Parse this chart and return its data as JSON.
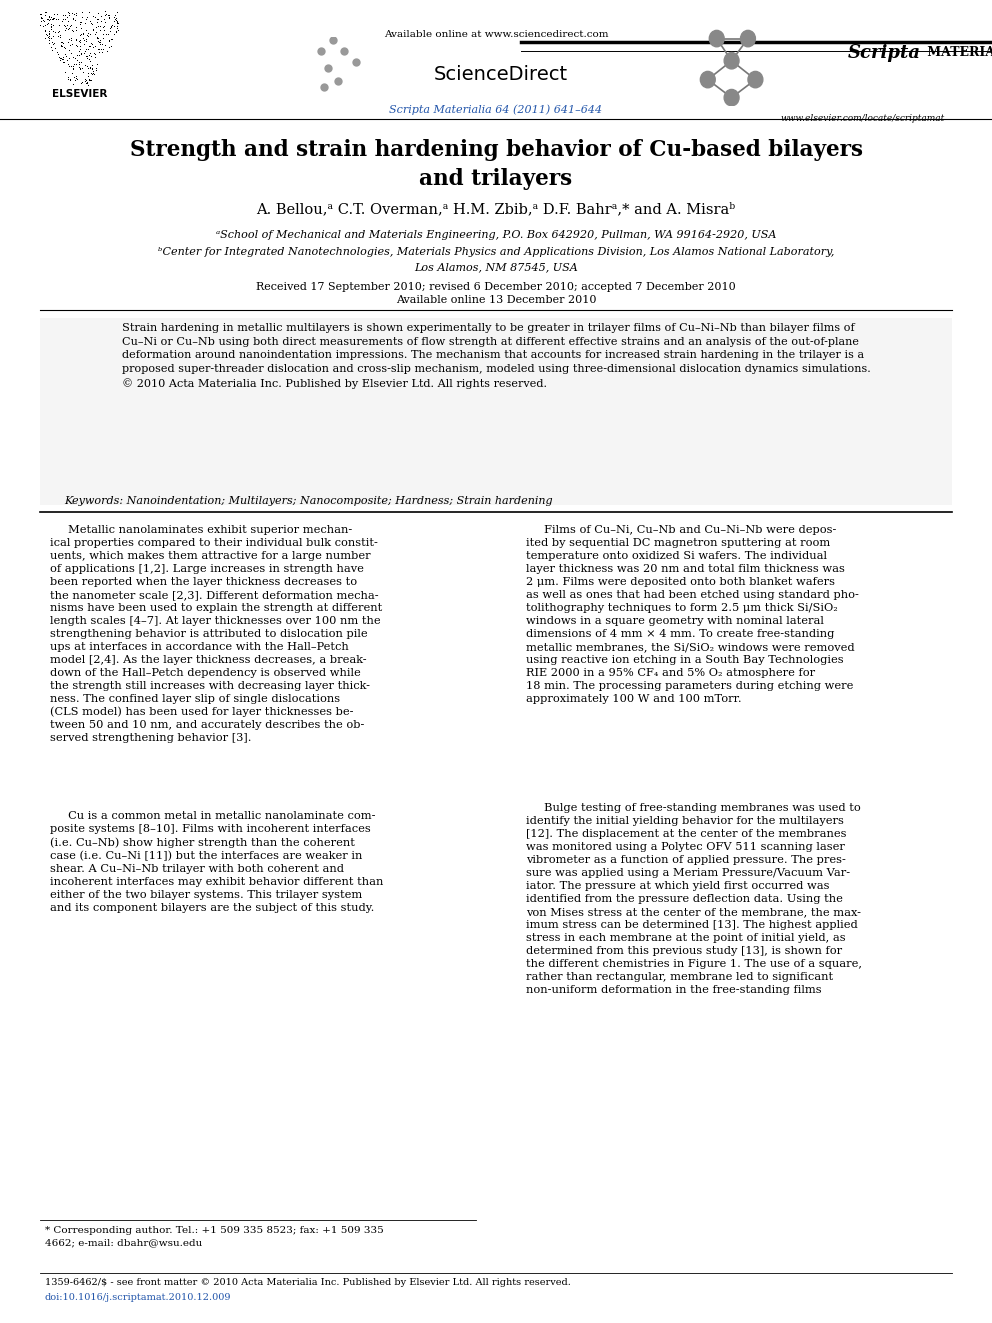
{
  "page_width": 9.92,
  "page_height": 13.23,
  "bg_color": "#ffffff",
  "available_online": "Available online at www.sciencedirect.com",
  "journal_ref": "Scripta Materialia 64 (2011) 641–644",
  "website": "www.elsevier.com/locate/scriptamat",
  "title": "Strength and strain hardening behavior of Cu-based bilayers\nand trilayers",
  "authors": "A. Bellou,ᵃ C.T. Overman,ᵃ H.M. Zbib,ᵃ D.F. Bahrᵃ,* and A. Misraᵇ",
  "affil_a": "ᵃSchool of Mechanical and Materials Engineering, P.O. Box 642920, Pullman, WA 99164-2920, USA",
  "affil_b": "ᵇCenter for Integrated Nanotechnologies, Materials Physics and Applications Division, Los Alamos National Laboratory,",
  "affil_b2": "Los Alamos, NM 87545, USA",
  "dates1": "Received 17 September 2010; revised 6 December 2010; accepted 7 December 2010",
  "dates2": "Available online 13 December 2010",
  "abstract_text": "Strain hardening in metallic multilayers is shown experimentally to be greater in trilayer films of Cu–Ni–Nb than bilayer films of\nCu–Ni or Cu–Nb using both direct measurements of flow strength at different effective strains and an analysis of the out-of-plane\ndeformation around nanoindentation impressions. The mechanism that accounts for increased strain hardening in the trilayer is a\nproposed super-threader dislocation and cross-slip mechanism, modeled using three-dimensional dislocation dynamics simulations.\n© 2010 Acta Materialia Inc. Published by Elsevier Ltd. All rights reserved.",
  "keywords": "Keywords: Nanoindentation; Multilayers; Nanocomposite; Hardness; Strain hardening",
  "col1_para1": "     Metallic nanolaminates exhibit superior mechan-\nical properties compared to their individual bulk constit-\nuents, which makes them attractive for a large number\nof applications [1,2]. Large increases in strength have\nbeen reported when the layer thickness decreases to\nthe nanometer scale [2,3]. Different deformation mecha-\nnisms have been used to explain the strength at different\nlength scales [4–7]. At layer thicknesses over 100 nm the\nstrengthening behavior is attributed to dislocation pile\nups at interfaces in accordance with the Hall–Petch\nmodel [2,4]. As the layer thickness decreases, a break-\ndown of the Hall–Petch dependency is observed while\nthe strength still increases with decreasing layer thick-\nness. The confined layer slip of single dislocations\n(CLS model) has been used for layer thicknesses be-\ntween 50 and 10 nm, and accurately describes the ob-\nserved strengthening behavior [3].",
  "col1_para2": "     Cu is a common metal in metallic nanolaminate com-\nposite systems [8–10]. Films with incoherent interfaces\n(i.e. Cu–Nb) show higher strength than the coherent\ncase (i.e. Cu–Ni [11]) but the interfaces are weaker in\nshear. A Cu–Ni–Nb trilayer with both coherent and\nincoherent interfaces may exhibit behavior different than\neither of the two bilayer systems. This trilayer system\nand its component bilayers are the subject of this study.",
  "col2_para1": "     Films of Cu–Ni, Cu–Nb and Cu–Ni–Nb were depos-\nited by sequential DC magnetron sputtering at room\ntemperature onto oxidized Si wafers. The individual\nlayer thickness was 20 nm and total film thickness was\n2 μm. Films were deposited onto both blanket wafers\nas well as ones that had been etched using standard pho-\ntolithography techniques to form 2.5 μm thick Si/SiO₂\nwindows in a square geometry with nominal lateral\ndimensions of 4 mm × 4 mm. To create free-standing\nmetallic membranes, the Si/SiO₂ windows were removed\nusing reactive ion etching in a South Bay Technologies\nRIE 2000 in a 95% CF₄ and 5% O₂ atmosphere for\n18 min. The processing parameters during etching were\napproximately 100 W and 100 mTorr.",
  "col2_para2": "     Bulge testing of free-standing membranes was used to\nidentify the initial yielding behavior for the multilayers\n[12]. The displacement at the center of the membranes\nwas monitored using a Polytec OFV 511 scanning laser\nvibrometer as a function of applied pressure. The pres-\nsure was applied using a Meriam Pressure/Vacuum Var-\niator. The pressure at which yield first occurred was\nidentified from the pressure deflection data. Using the\nvon Mises stress at the center of the membrane, the max-\nimum stress can be determined [13]. The highest applied\nstress in each membrane at the point of initial yield, as\ndetermined from this previous study [13], is shown for\nthe different chemistries in Figure 1. The use of a square,\nrather than rectangular, membrane led to significant\nnon-uniform deformation in the free-standing films",
  "footnote": "* Corresponding author. Tel.: +1 509 335 8523; fax: +1 509 335\n4662; e-mail: dbahr@wsu.edu",
  "bottom1": "1359-6462/$ - see front matter © 2010 Acta Materialia Inc. Published by Elsevier Ltd. All rights reserved.",
  "bottom2": "doi:10.1016/j.scriptamat.2010.12.009",
  "blue_color": "#2255aa",
  "dark_blue": "#003399"
}
